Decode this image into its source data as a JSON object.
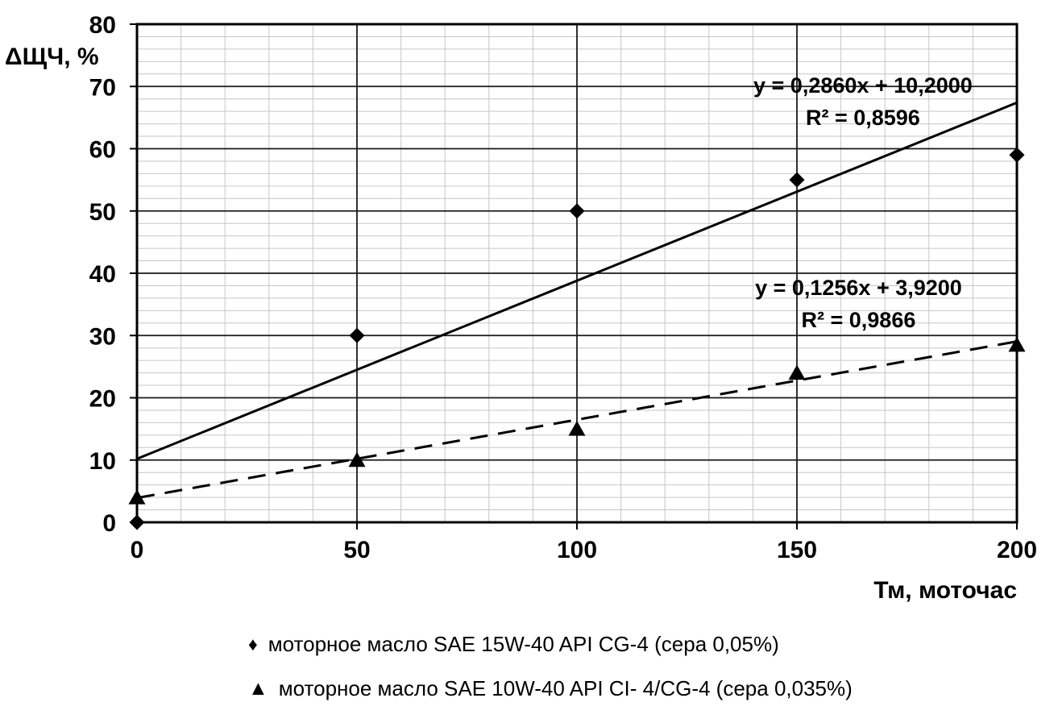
{
  "page": {
    "background": "#ffffff"
  },
  "chart_data": {
    "type": "scatter",
    "title": "",
    "xlabel": "Тм, моточас",
    "ylabel": "ΔЩЧ, %",
    "xlim": [
      0,
      200
    ],
    "ylim": [
      0,
      80
    ],
    "x_ticks": [
      0,
      50,
      100,
      150,
      200
    ],
    "y_ticks": [
      0,
      10,
      20,
      30,
      40,
      50,
      60,
      70,
      80
    ],
    "x_minor_step": 10,
    "y_minor_step": 2,
    "grid": "major+minor",
    "legend_position": "bottom",
    "colors": {
      "series": "#000000",
      "major_grid": "#1a1a1a",
      "minor_grid": "#c6c6c6",
      "axis": "#000000",
      "background": "#ffffff"
    },
    "series": [
      {
        "name": "моторное масло SAE 15W-40 API CG-4 (сера 0,05%)",
        "marker": "diamond",
        "marker_glyph": "♦",
        "line": "none",
        "x": [
          0,
          50,
          100,
          150,
          200
        ],
        "y": [
          0,
          30,
          50,
          55,
          59
        ],
        "trendline": {
          "slope": 0.286,
          "intercept": 10.2,
          "style": "solid",
          "equation": "y = 0,2860x + 10,2000",
          "r2": "R² = 0,8596",
          "label_anchor": {
            "x": 165,
            "y": 69
          }
        }
      },
      {
        "name": "моторное масло SAE 10W-40 API CI- 4/CG-4 (сера 0,035%)",
        "marker": "triangle",
        "marker_glyph": "▲",
        "line": "none",
        "x": [
          0,
          50,
          100,
          150,
          200
        ],
        "y": [
          4,
          10,
          15,
          24,
          28.5
        ],
        "trendline": {
          "slope": 0.1256,
          "intercept": 3.92,
          "style": "dashed",
          "equation": "y = 0,1256x + 3,9200",
          "r2": "R² = 0,9866",
          "label_anchor": {
            "x": 164,
            "y": 36.5
          }
        }
      }
    ]
  }
}
